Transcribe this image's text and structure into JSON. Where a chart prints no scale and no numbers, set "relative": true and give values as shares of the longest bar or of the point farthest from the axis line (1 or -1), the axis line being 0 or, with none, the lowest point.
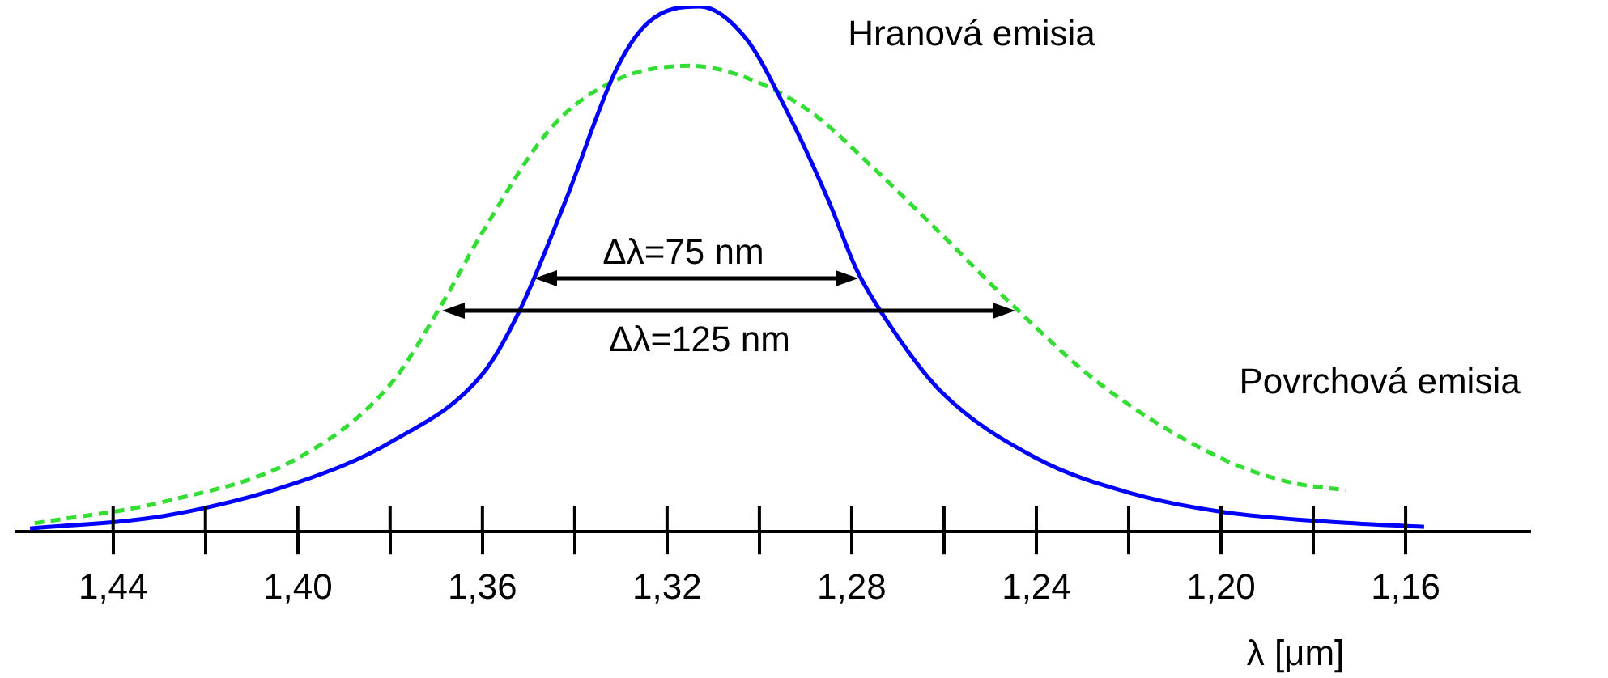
{
  "chart_data": {
    "type": "line",
    "relative": true,
    "xlabel": "λ [μm]",
    "xlim": [
      1.461,
      1.133
    ],
    "xticks": [
      {
        "value": 1.44,
        "label": "1,44"
      },
      {
        "value": 1.42,
        "label": null
      },
      {
        "value": 1.4,
        "label": "1,40"
      },
      {
        "value": 1.38,
        "label": null
      },
      {
        "value": 1.36,
        "label": "1,36"
      },
      {
        "value": 1.34,
        "label": null
      },
      {
        "value": 1.32,
        "label": "1,32"
      },
      {
        "value": 1.3,
        "label": null
      },
      {
        "value": 1.28,
        "label": "1,28"
      },
      {
        "value": 1.26,
        "label": null
      },
      {
        "value": 1.24,
        "label": "1,24"
      },
      {
        "value": 1.22,
        "label": null
      },
      {
        "value": 1.2,
        "label": "1,20"
      },
      {
        "value": 1.18,
        "label": null
      },
      {
        "value": 1.16,
        "label": "1,16"
      }
    ],
    "grid": false,
    "legend": false,
    "tick_labels": "x",
    "marker": "none",
    "series": [
      {
        "color": "#0000ff",
        "line_style": "solid",
        "x": [
          1.458,
          1.429,
          1.4,
          1.38,
          1.36,
          1.352,
          1.342,
          1.331,
          1.324,
          1.313,
          1.303,
          1.294,
          1.285,
          1.279,
          1.273,
          1.261,
          1.24,
          1.219,
          1.2,
          1.177,
          1.156
        ],
        "values": [
          0.006,
          0.03,
          0.094,
          0.17,
          0.3,
          0.42,
          0.63,
          0.88,
          0.97,
          1,
          0.94,
          0.8,
          0.63,
          0.5,
          0.41,
          0.27,
          0.14,
          0.072,
          0.038,
          0.019,
          0.009
        ]
      },
      {
        "color": "#33dd33",
        "line_style": "dashed",
        "x": [
          1.457,
          1.429,
          1.4,
          1.38,
          1.369,
          1.36,
          1.345,
          1.331,
          1.315,
          1.303,
          1.289,
          1.275,
          1.261,
          1.245,
          1.226,
          1.2,
          1.185,
          1.173
        ],
        "values": [
          0.016,
          0.057,
          0.14,
          0.28,
          0.43,
          0.57,
          0.77,
          0.86,
          0.887,
          0.865,
          0.8,
          0.69,
          0.57,
          0.43,
          0.28,
          0.14,
          0.094,
          0.079
        ]
      }
    ],
    "annotations": [
      "Hranová emisia",
      "Povrchová emisia",
      "Δλ=75 nm",
      "Δλ=125 nm"
    ]
  }
}
